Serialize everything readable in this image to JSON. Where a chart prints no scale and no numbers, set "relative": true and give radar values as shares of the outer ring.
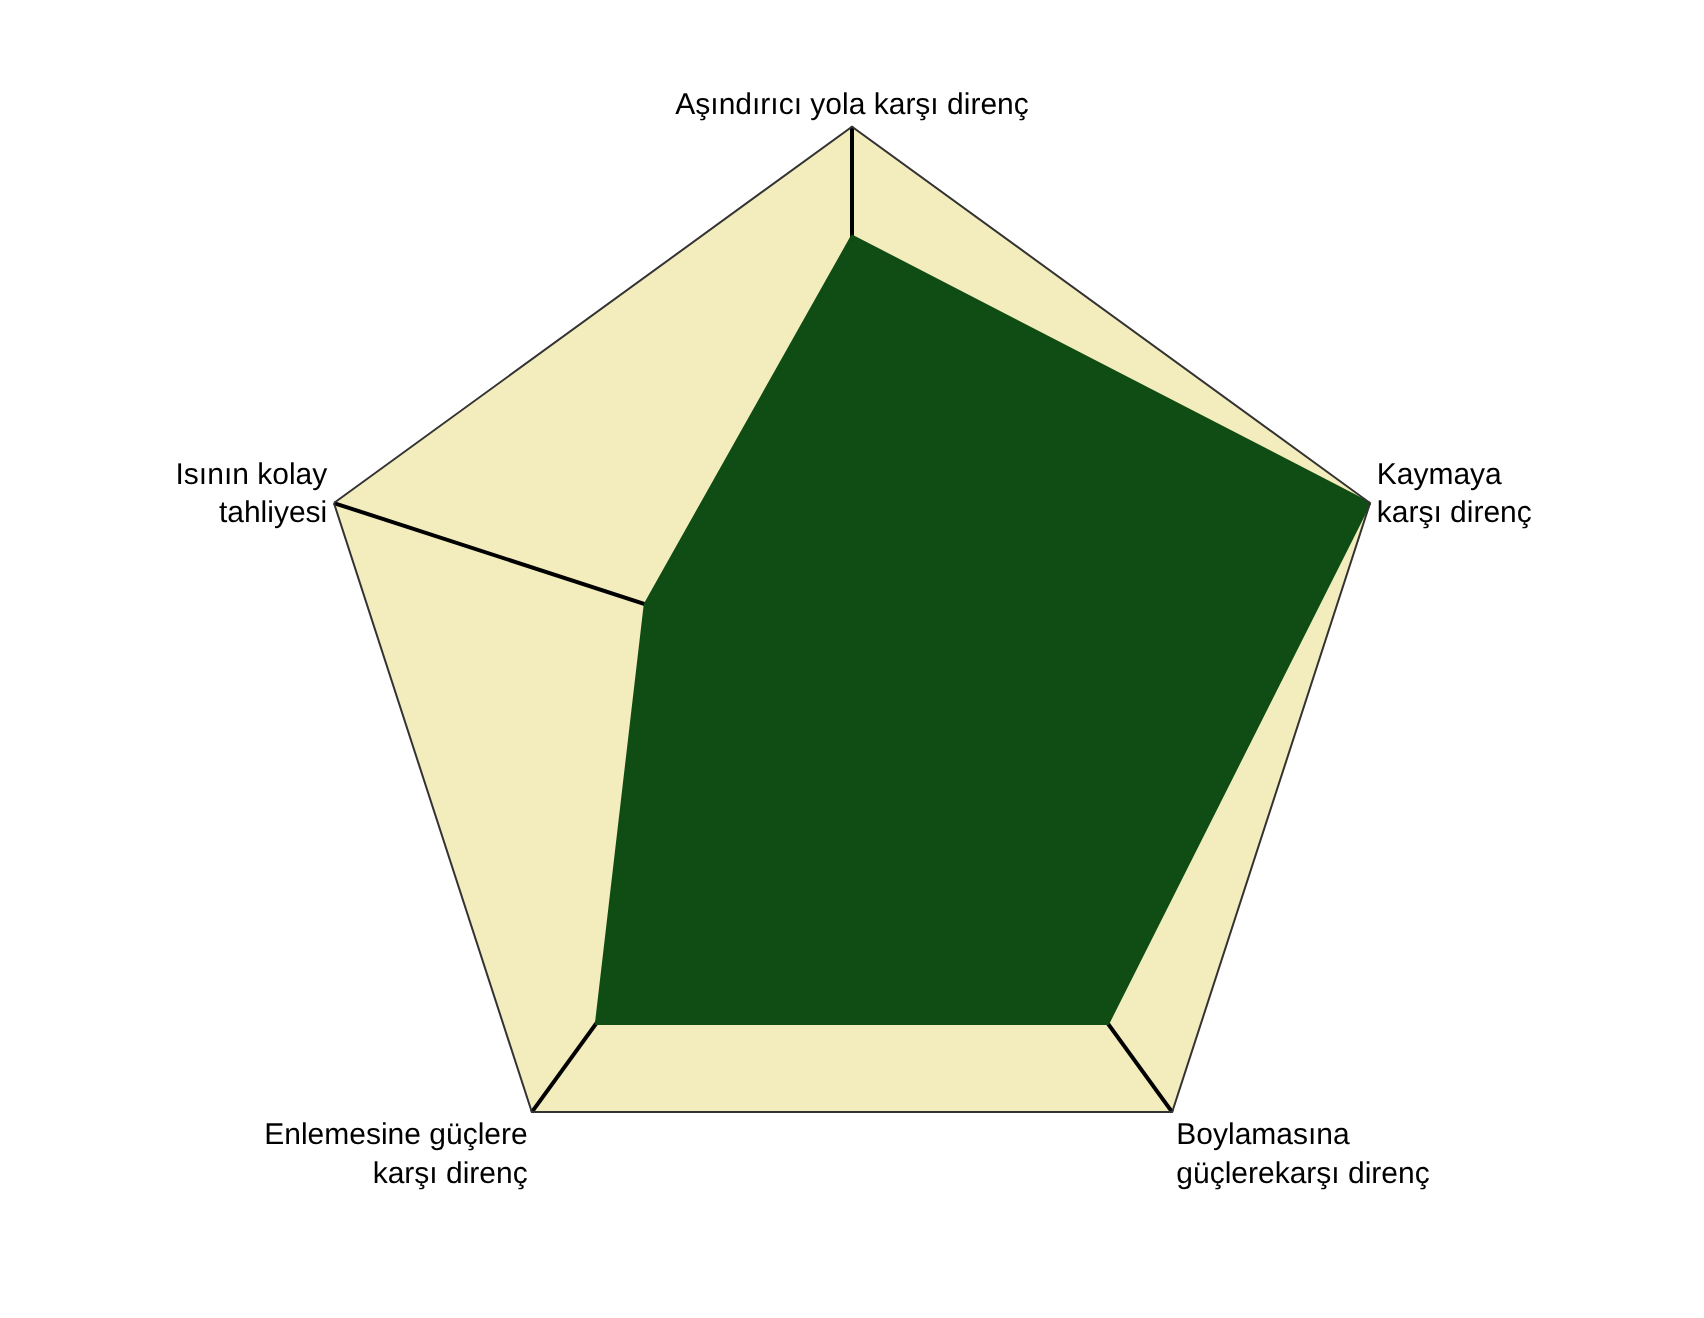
{
  "chart_data": {
    "type": "radar",
    "relative": true,
    "categories": [
      "Aşındırıcı yola karşı direnç",
      "Kaymaya\nkarşı direnç",
      "Boylamasına\ngüçlerekarşı direnç",
      "Enlemesine güçlere\nkarşı direnç",
      "Isının kolay\ntahliyesi"
    ],
    "series": [
      {
        "color": "#0f4d14",
        "values": [
          0.8,
          1.0,
          0.8,
          0.8,
          0.4
        ]
      }
    ],
    "legend": false
  }
}
